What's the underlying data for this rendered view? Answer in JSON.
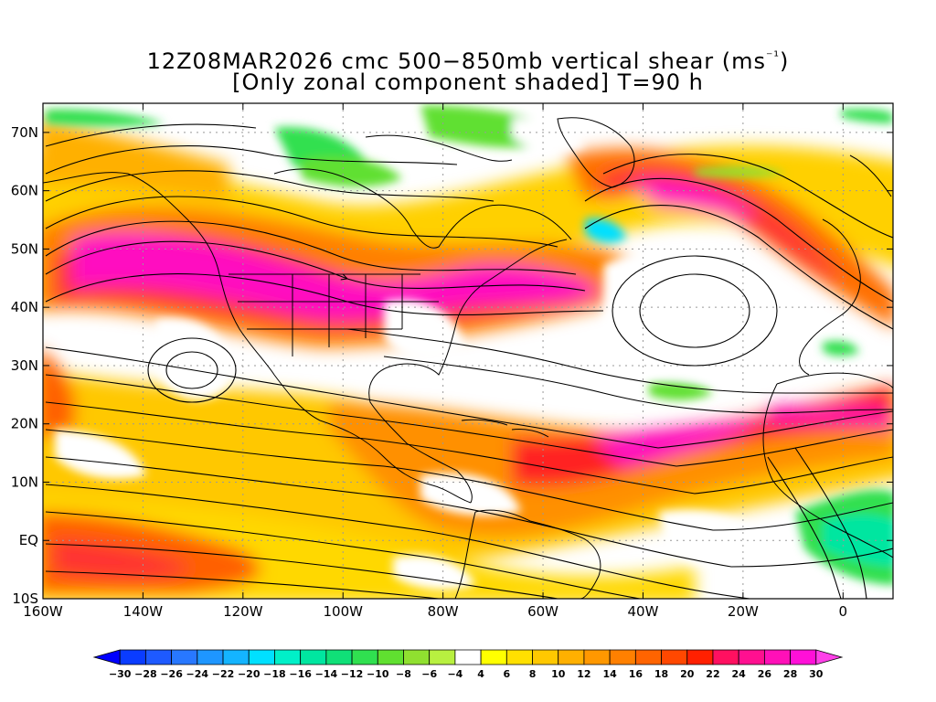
{
  "title": {
    "line1_prefix": "12Z08MAR2026 cmc 500−850mb vertical shear (ms",
    "line1_sup": "⁻¹",
    "line1_suffix": ")",
    "line2": "[Only zonal component shaded] T=90 h"
  },
  "map": {
    "lon_range": [
      -160,
      10
    ],
    "lat_range": [
      -10,
      75
    ],
    "lat_ticks": [
      "70N",
      "60N",
      "50N",
      "40N",
      "30N",
      "20N",
      "10N",
      "EQ",
      "10S"
    ],
    "lon_ticks": [
      "160W",
      "140W",
      "120W",
      "100W",
      "80W",
      "60W",
      "40W",
      "20W",
      "0"
    ],
    "grid": true,
    "colors": {
      "land_outline": "#000000",
      "grid": "#999999",
      "streamline": "#000000"
    }
  },
  "colorbar": {
    "labels": [
      "−30",
      "−28",
      "−26",
      "−24",
      "−22",
      "−20",
      "−18",
      "−16",
      "−14",
      "−12",
      "−10",
      "−8",
      "−6",
      "−4",
      "4",
      "6",
      "8",
      "10",
      "12",
      "14",
      "16",
      "18",
      "20",
      "22",
      "24",
      "26",
      "28",
      "30"
    ],
    "colors": [
      "#0000ff",
      "#0a3cff",
      "#1e5aff",
      "#2878ff",
      "#1e96ff",
      "#14b4ff",
      "#00e0ff",
      "#00f0c8",
      "#00e6a0",
      "#10e078",
      "#30e050",
      "#60e030",
      "#90e030",
      "#b8f040",
      "#ffffff",
      "#ffff00",
      "#ffe000",
      "#ffc800",
      "#ffb000",
      "#ff9800",
      "#ff8000",
      "#ff6400",
      "#ff4800",
      "#ff2000",
      "#ff1060",
      "#ff1090",
      "#ff10b8",
      "#ff10d8",
      "#ff40e8"
    ]
  }
}
